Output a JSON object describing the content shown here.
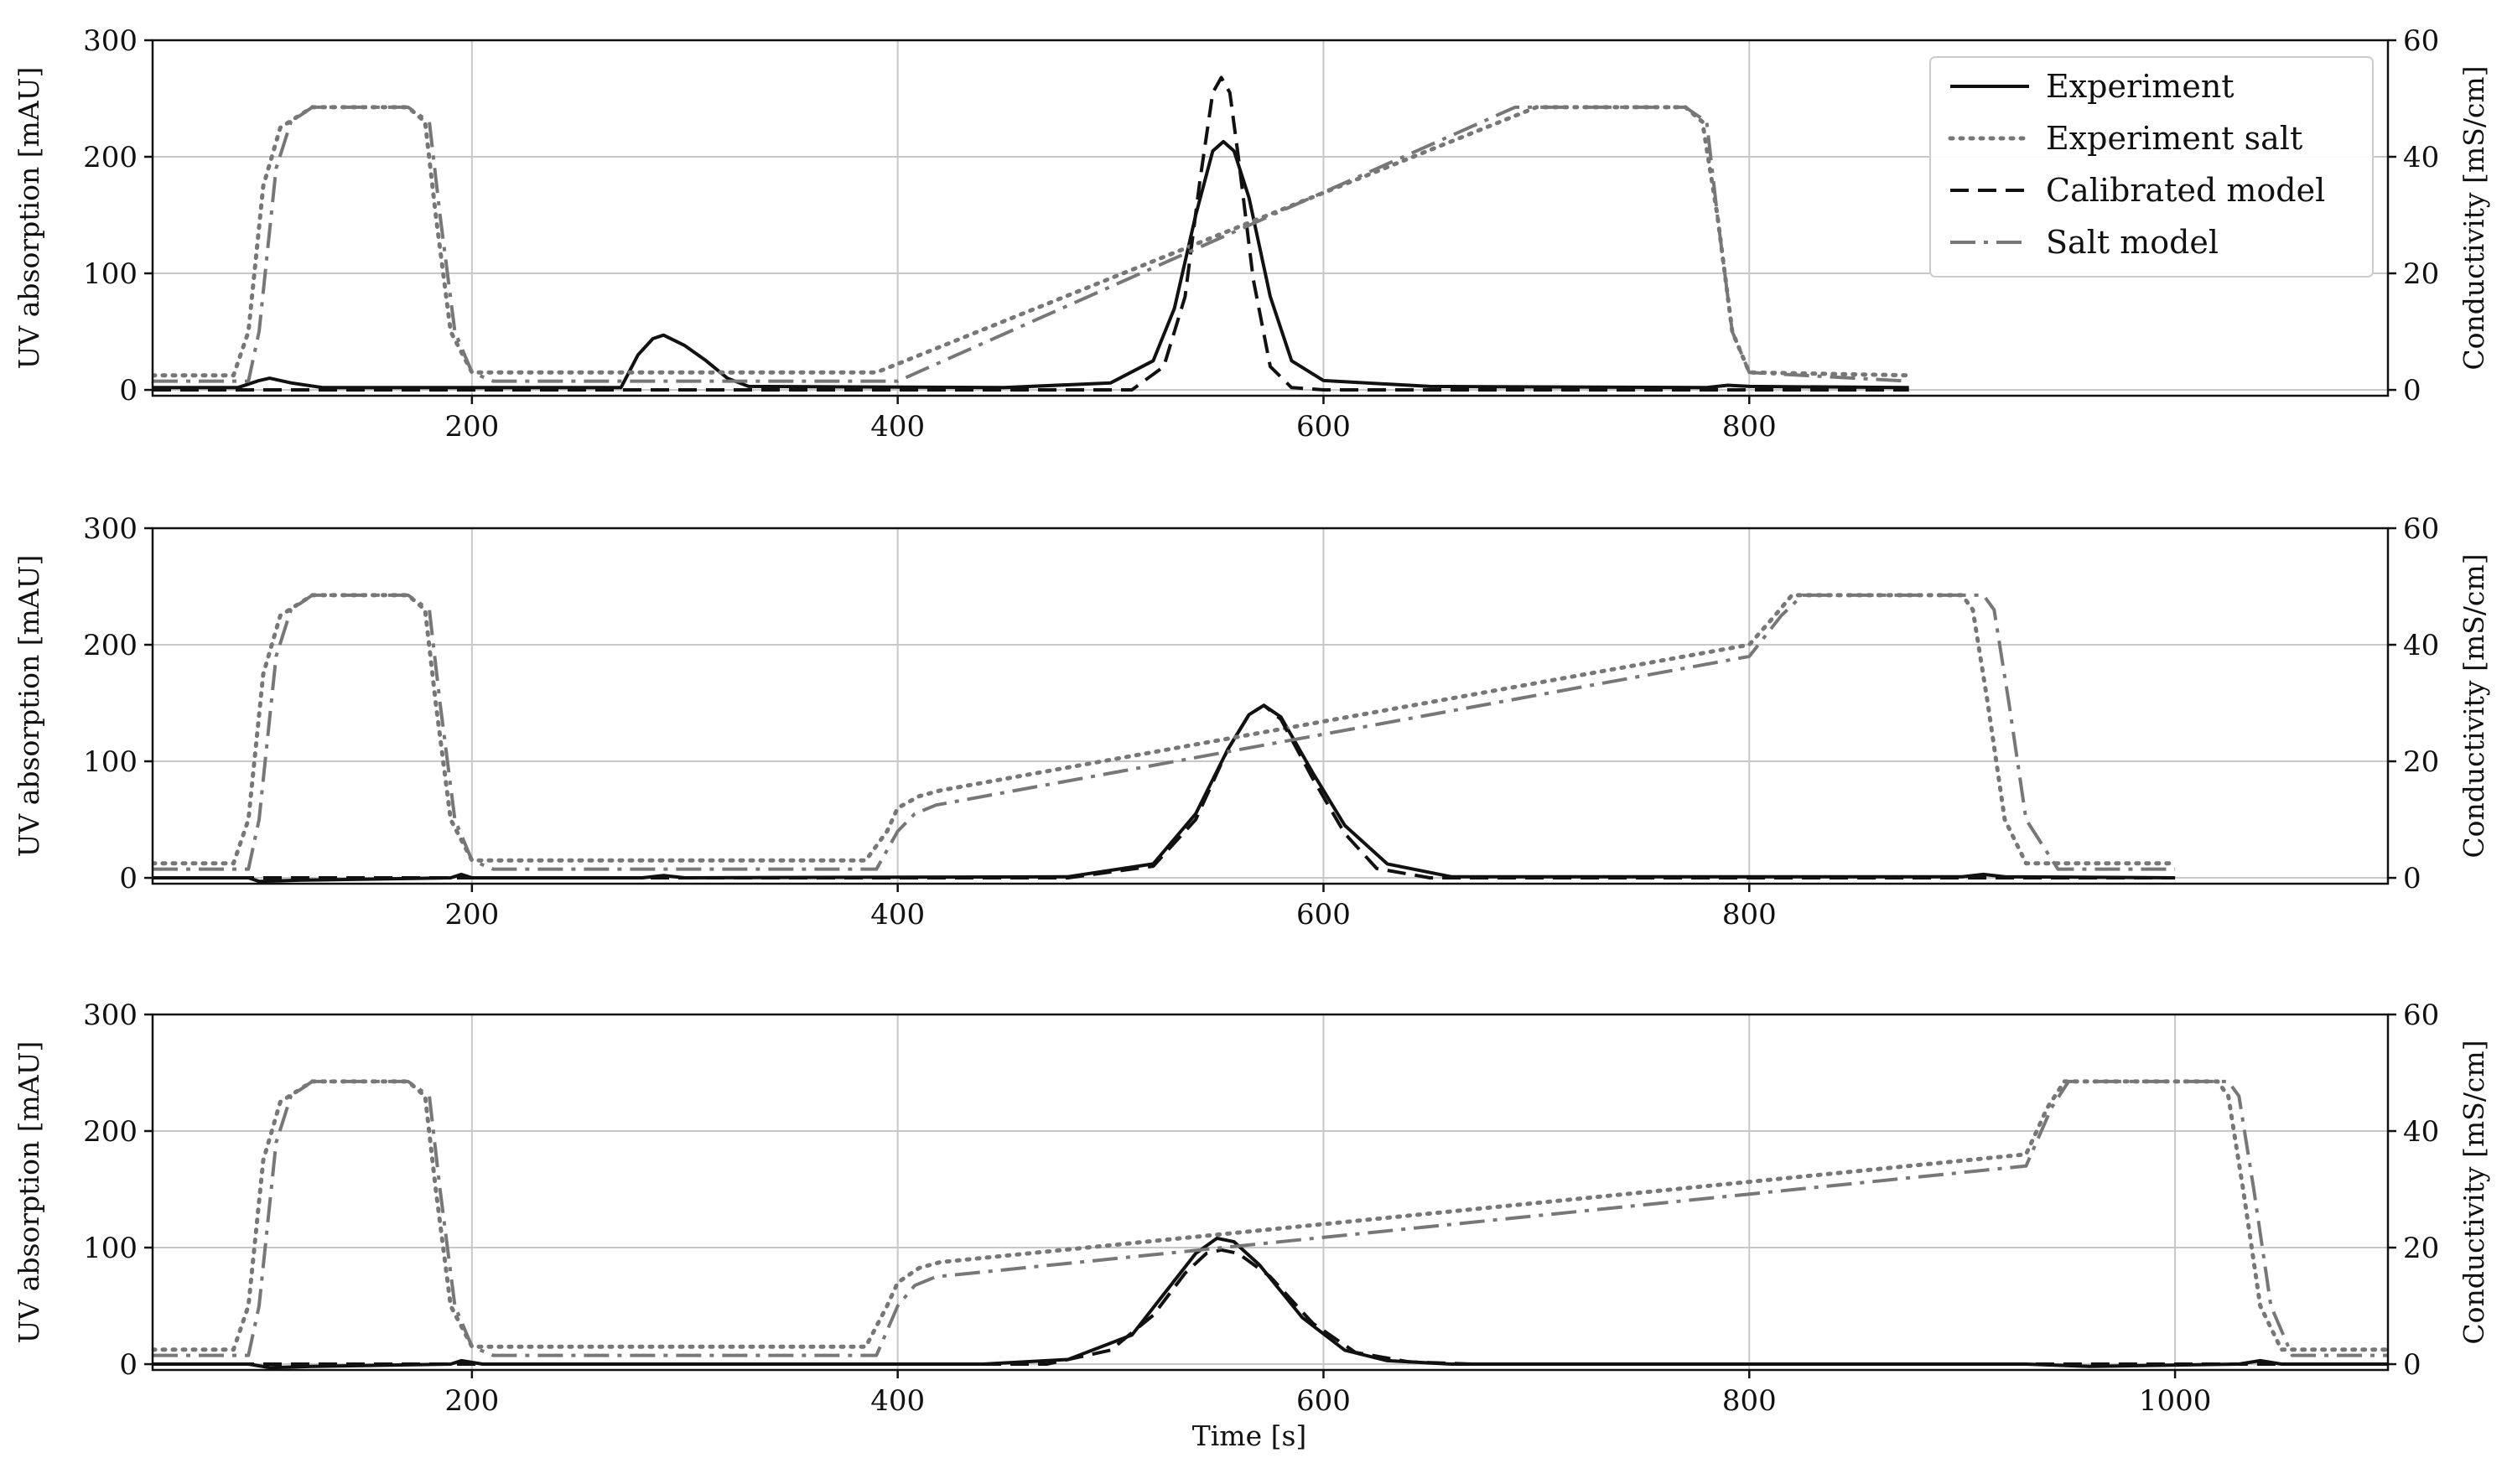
{
  "chart_data": [
    {
      "type": "line",
      "panel": 1,
      "xlabel": "",
      "ylabel": "UV absorption [mAU]",
      "ylabel_right": "Conductivity [mS/cm]",
      "xlim": [
        50,
        1100
      ],
      "ylim": [
        -5,
        300
      ],
      "ylim_right": [
        -1,
        60
      ],
      "yticks": [
        0,
        100,
        200,
        300
      ],
      "yticks_right": [
        0,
        20,
        40,
        60
      ],
      "xticks": [
        200,
        400,
        600,
        800
      ],
      "grid": true,
      "legend": {
        "placement": "top-right",
        "entries": [
          "Experiment",
          "Experiment salt",
          "Calibrated model",
          "Salt model"
        ]
      },
      "series": [
        {
          "name": "Experiment",
          "axis": "left",
          "style": "solid",
          "color": "#111111",
          "x": [
            50,
            90,
            100,
            105,
            115,
            130,
            200,
            270,
            278,
            285,
            290,
            300,
            310,
            320,
            330,
            450,
            500,
            520,
            530,
            540,
            548,
            553,
            558,
            565,
            575,
            585,
            600,
            650,
            780,
            790,
            800,
            875
          ],
          "y": [
            2,
            2,
            8,
            10,
            6,
            2,
            2,
            2,
            30,
            44,
            47,
            38,
            25,
            10,
            3,
            2,
            6,
            25,
            70,
            150,
            205,
            213,
            205,
            165,
            80,
            25,
            8,
            3,
            2,
            4,
            3,
            2
          ]
        },
        {
          "name": "Experiment salt",
          "axis": "right",
          "style": "dotted",
          "color": "#777777",
          "x": [
            50,
            88,
            95,
            102,
            110,
            125,
            170,
            178,
            183,
            190,
            200,
            390,
            700,
            770,
            778,
            785,
            792,
            800,
            875
          ],
          "y": [
            2.5,
            2.5,
            10,
            35,
            45,
            48.5,
            48.5,
            46,
            30,
            10,
            3,
            3,
            48.5,
            48.5,
            46,
            30,
            10,
            3,
            2.5
          ]
        },
        {
          "name": "Calibrated model",
          "axis": "left",
          "style": "dashed",
          "color": "#111111",
          "x": [
            50,
            510,
            525,
            535,
            542,
            548,
            552,
            556,
            560,
            567,
            575,
            585,
            600,
            875
          ],
          "y": [
            0,
            0,
            20,
            80,
            180,
            255,
            268,
            255,
            200,
            95,
            20,
            2,
            0,
            0
          ]
        },
        {
          "name": "Salt model",
          "axis": "right",
          "style": "dashdot",
          "color": "#777777",
          "x": [
            50,
            95,
            100,
            108,
            115,
            125,
            170,
            180,
            185,
            192,
            200,
            210,
            400,
            690,
            770,
            780,
            785,
            792,
            800,
            875
          ],
          "y": [
            1.5,
            1.5,
            10,
            38,
            46,
            48.5,
            48.5,
            46,
            30,
            10,
            3,
            1.5,
            1.5,
            48.5,
            48.5,
            46,
            30,
            10,
            3,
            1.5
          ]
        }
      ]
    },
    {
      "type": "line",
      "panel": 2,
      "xlabel": "",
      "ylabel": "UV absorption [mAU]",
      "ylabel_right": "Conductivity [mS/cm]",
      "xlim": [
        50,
        1100
      ],
      "ylim": [
        -5,
        300
      ],
      "ylim_right": [
        -1,
        60
      ],
      "yticks": [
        0,
        100,
        200,
        300
      ],
      "yticks_right": [
        0,
        20,
        40,
        60
      ],
      "xticks": [
        200,
        400,
        600,
        800
      ],
      "grid": true,
      "series": [
        {
          "name": "Experiment",
          "axis": "left",
          "style": "solid",
          "color": "#111111",
          "x": [
            50,
            95,
            100,
            120,
            190,
            195,
            200,
            280,
            290,
            300,
            480,
            520,
            540,
            555,
            565,
            572,
            580,
            595,
            610,
            630,
            660,
            900,
            910,
            920,
            1000
          ],
          "y": [
            0,
            0,
            -3,
            -2,
            0,
            3,
            0,
            0,
            2,
            0,
            1,
            12,
            55,
            110,
            140,
            148,
            138,
            90,
            45,
            12,
            1,
            1,
            3,
            1,
            0
          ]
        },
        {
          "name": "Experiment salt",
          "axis": "right",
          "style": "dotted",
          "color": "#777777",
          "x": [
            50,
            88,
            95,
            102,
            110,
            125,
            170,
            178,
            183,
            190,
            200,
            385,
            395,
            400,
            410,
            420,
            800,
            812,
            820,
            828,
            900,
            905,
            912,
            920,
            930,
            1000
          ],
          "y": [
            2.5,
            2.5,
            10,
            35,
            45,
            48.5,
            48.5,
            46,
            30,
            10,
            3,
            3,
            8,
            12,
            14,
            15,
            40,
            45,
            48.5,
            48.5,
            48.5,
            46,
            30,
            10,
            2.5,
            2.5
          ]
        },
        {
          "name": "Calibrated model",
          "axis": "left",
          "style": "dashed",
          "color": "#111111",
          "x": [
            50,
            480,
            520,
            540,
            555,
            565,
            572,
            580,
            595,
            610,
            625,
            650,
            1000
          ],
          "y": [
            0,
            0,
            10,
            50,
            110,
            140,
            148,
            136,
            85,
            38,
            8,
            0,
            0
          ]
        },
        {
          "name": "Salt model",
          "axis": "right",
          "style": "dashdot",
          "color": "#777777",
          "x": [
            50,
            95,
            100,
            108,
            115,
            125,
            170,
            180,
            185,
            192,
            200,
            210,
            390,
            400,
            408,
            418,
            800,
            815,
            825,
            830,
            910,
            915,
            922,
            930,
            945,
            1000
          ],
          "y": [
            1.5,
            1.5,
            10,
            38,
            46,
            48.5,
            48.5,
            46,
            30,
            10,
            3,
            1.5,
            1.5,
            8,
            11,
            12.5,
            38,
            45,
            48.5,
            48.5,
            48.5,
            46,
            30,
            10,
            1.5,
            1.5
          ]
        }
      ]
    },
    {
      "type": "line",
      "panel": 3,
      "xlabel": "Time [s]",
      "ylabel": "UV absorption [mAU]",
      "ylabel_right": "Conductivity [mS/cm]",
      "xlim": [
        50,
        1100
      ],
      "ylim": [
        -5,
        300
      ],
      "ylim_right": [
        -1,
        60
      ],
      "yticks": [
        0,
        100,
        200,
        300
      ],
      "yticks_right": [
        0,
        20,
        40,
        60
      ],
      "xticks": [
        200,
        400,
        600,
        800,
        1000
      ],
      "grid": true,
      "series": [
        {
          "name": "Experiment",
          "axis": "left",
          "style": "solid",
          "color": "#111111",
          "x": [
            50,
            95,
            105,
            125,
            190,
            195,
            205,
            440,
            480,
            510,
            525,
            540,
            550,
            558,
            570,
            590,
            610,
            630,
            660,
            930,
            960,
            1030,
            1040,
            1050,
            1100
          ],
          "y": [
            0,
            0,
            -3,
            -2,
            0,
            3,
            0,
            0,
            4,
            25,
            60,
            95,
            108,
            105,
            85,
            40,
            12,
            3,
            0,
            0,
            -2,
            0,
            3,
            0,
            0
          ]
        },
        {
          "name": "Experiment salt",
          "axis": "right",
          "style": "dotted",
          "color": "#777777",
          "x": [
            50,
            88,
            95,
            102,
            110,
            125,
            170,
            178,
            183,
            190,
            200,
            385,
            395,
            400,
            410,
            420,
            930,
            940,
            948,
            955,
            1020,
            1025,
            1032,
            1040,
            1050,
            1100
          ],
          "y": [
            2.5,
            2.5,
            10,
            35,
            45,
            48.5,
            48.5,
            46,
            30,
            10,
            3,
            3,
            10,
            14,
            16.5,
            17.5,
            36,
            44,
            48.5,
            48.5,
            48.5,
            46,
            30,
            10,
            2.5,
            2.5
          ]
        },
        {
          "name": "Calibrated model",
          "axis": "left",
          "style": "dashed",
          "color": "#111111",
          "x": [
            50,
            470,
            500,
            520,
            535,
            545,
            552,
            560,
            575,
            595,
            615,
            640,
            670,
            1100
          ],
          "y": [
            0,
            0,
            12,
            42,
            78,
            95,
            98,
            95,
            75,
            35,
            10,
            2,
            0,
            0
          ]
        },
        {
          "name": "Salt model",
          "axis": "right",
          "style": "dashdot",
          "color": "#777777",
          "x": [
            50,
            95,
            100,
            108,
            115,
            125,
            170,
            180,
            185,
            192,
            200,
            210,
            390,
            400,
            408,
            418,
            930,
            942,
            950,
            958,
            1025,
            1030,
            1037,
            1045,
            1055,
            1100
          ],
          "y": [
            1.5,
            1.5,
            10,
            38,
            46,
            48.5,
            48.5,
            46,
            30,
            10,
            3,
            1.5,
            1.5,
            10,
            13.5,
            15,
            34,
            44,
            48.5,
            48.5,
            48.5,
            46,
            30,
            10,
            1.5,
            1.5
          ]
        }
      ]
    }
  ]
}
